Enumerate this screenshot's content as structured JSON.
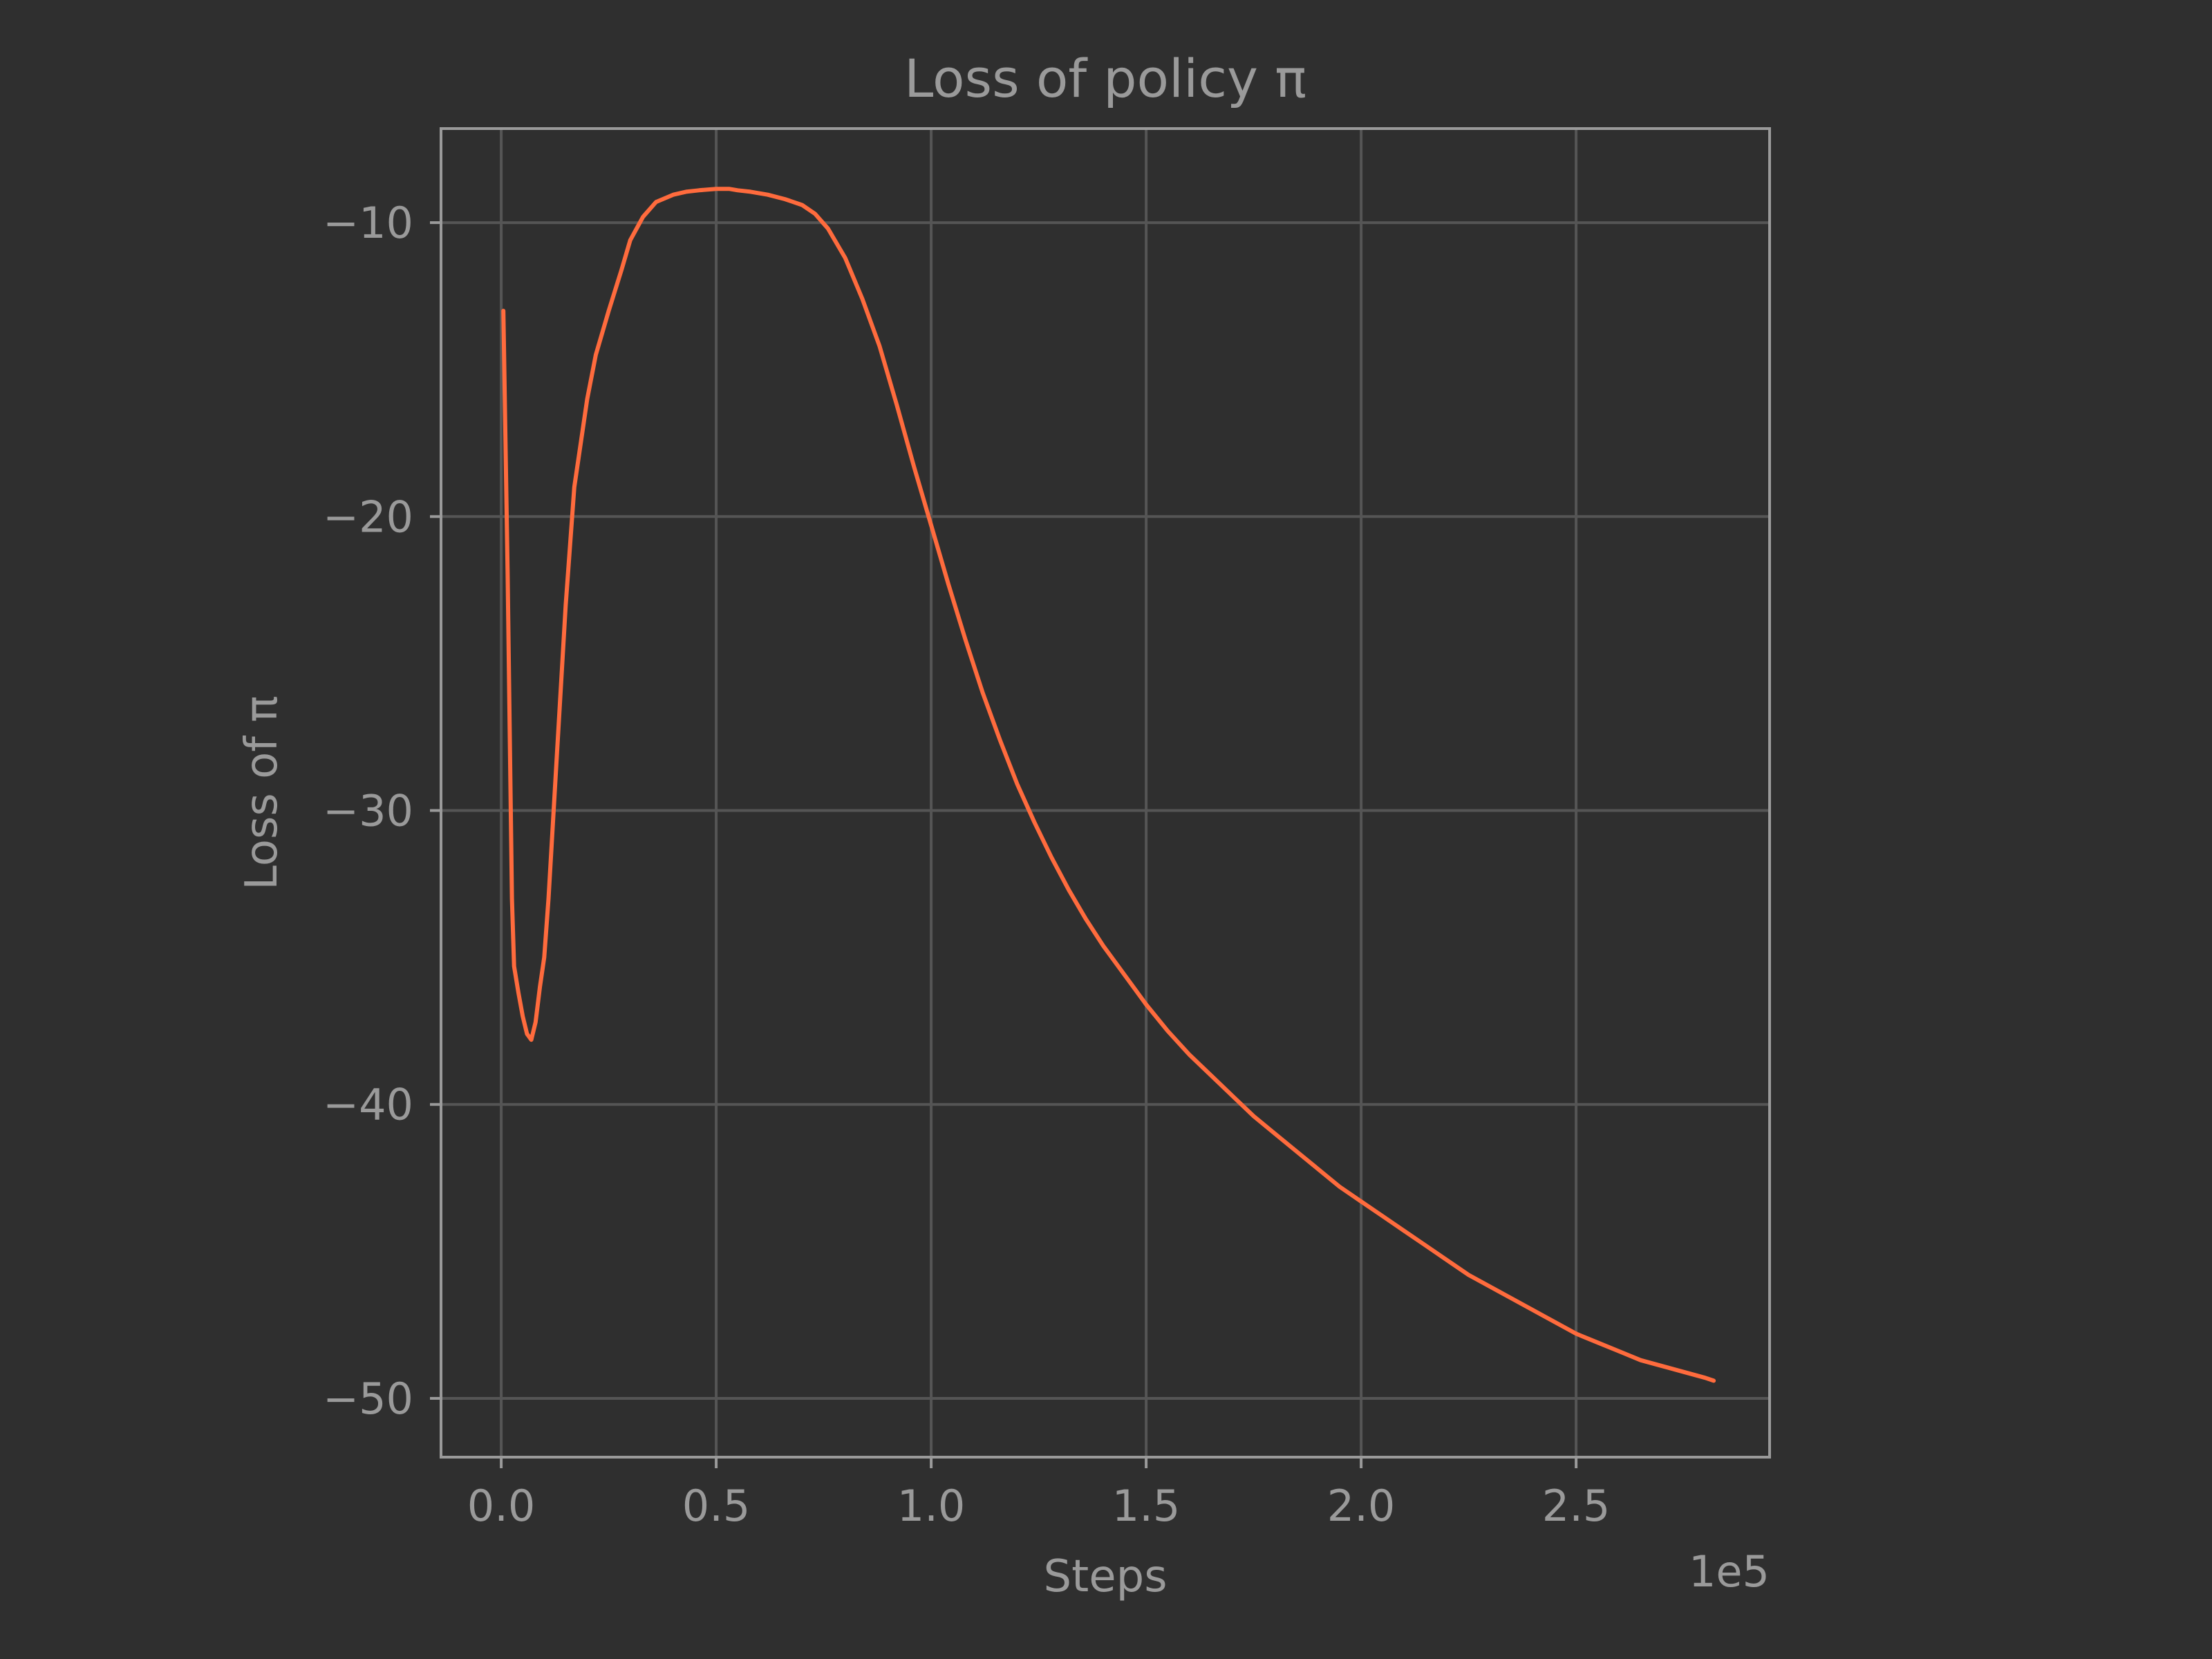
{
  "chart_data": {
    "type": "line",
    "title": "Loss of policy π",
    "xlabel": "Steps",
    "ylabel": "Loss of π",
    "x_offset_label": "1e5",
    "xlim": [
      -0.14,
      2.95
    ],
    "ylim": [
      -52,
      -6.8
    ],
    "x_ticks": [
      0.0,
      0.5,
      1.0,
      1.5,
      2.0,
      2.5
    ],
    "x_tick_labels": [
      "0.0",
      "0.5",
      "1.0",
      "1.5",
      "2.0",
      "2.5"
    ],
    "y_ticks": [
      -10,
      -20,
      -30,
      -40,
      -50
    ],
    "y_tick_labels": [
      "−10",
      "−20",
      "−30",
      "−40",
      "−50"
    ],
    "grid": true,
    "colors": {
      "background": "#2f2f2f",
      "line": "#ff6b3d",
      "grid": "#555555",
      "text": "#9a9a9a"
    },
    "series": [
      {
        "color": "#ff6b3d",
        "x": [
          0.005,
          0.015,
          0.025,
          0.03,
          0.04,
          0.05,
          0.06,
          0.07,
          0.08,
          0.09,
          0.1,
          0.11,
          0.12,
          0.13,
          0.15,
          0.17,
          0.2,
          0.22,
          0.25,
          0.28,
          0.3,
          0.33,
          0.36,
          0.4,
          0.43,
          0.46,
          0.5,
          0.53,
          0.55,
          0.58,
          0.62,
          0.66,
          0.7,
          0.73,
          0.76,
          0.8,
          0.84,
          0.88,
          0.92,
          0.96,
          1.0,
          1.04,
          1.08,
          1.12,
          1.16,
          1.2,
          1.24,
          1.28,
          1.32,
          1.36,
          1.4,
          1.45,
          1.5,
          1.55,
          1.6,
          1.65,
          1.7,
          1.75,
          1.8,
          1.85,
          1.9,
          1.95,
          2.0,
          2.05,
          2.1,
          2.15,
          2.2,
          2.25,
          2.3,
          2.35,
          2.4,
          2.45,
          2.5,
          2.55,
          2.6,
          2.65,
          2.7,
          2.75,
          2.8,
          2.82
        ],
        "y": [
          -13.0,
          -22.0,
          -33.0,
          -35.3,
          -36.2,
          -37.0,
          -37.6,
          -37.8,
          -37.2,
          -36.0,
          -35.0,
          -33.0,
          -30.5,
          -28.0,
          -23.0,
          -19.0,
          -16.0,
          -14.5,
          -13.0,
          -11.6,
          -10.6,
          -9.8,
          -9.3,
          -9.05,
          -8.95,
          -8.9,
          -8.85,
          -8.85,
          -8.9,
          -8.95,
          -9.05,
          -9.2,
          -9.4,
          -9.7,
          -10.2,
          -11.2,
          -12.6,
          -14.2,
          -16.2,
          -18.3,
          -20.3,
          -22.3,
          -24.2,
          -26.0,
          -27.6,
          -29.1,
          -30.4,
          -31.6,
          -32.7,
          -33.7,
          -34.6,
          -35.6,
          -36.6,
          -37.5,
          -38.3,
          -39.0,
          -39.7,
          -40.4,
          -41.0,
          -41.6,
          -42.2,
          -42.8,
          -43.3,
          -43.8,
          -44.3,
          -44.8,
          -45.3,
          -45.8,
          -46.2,
          -46.6,
          -47.0,
          -47.4,
          -47.8,
          -48.1,
          -48.4,
          -48.7,
          -48.9,
          -49.1,
          -49.3,
          -49.4
        ]
      }
    ]
  }
}
